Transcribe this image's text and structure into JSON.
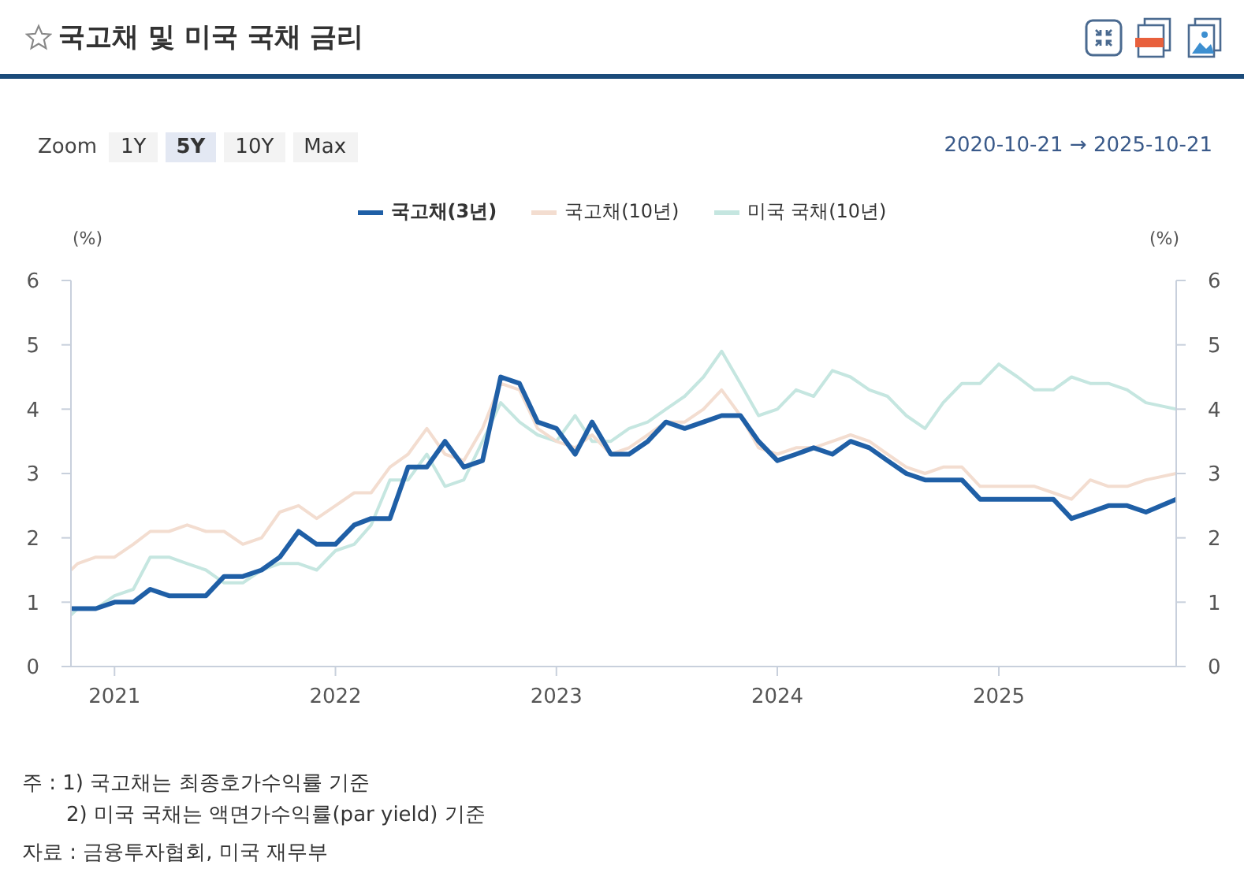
{
  "chart_data": {
    "type": "line",
    "title": "국고채 및 미국 국채 금리",
    "ylabel": "(%)",
    "y2label": "(%)",
    "annotations": [
      "Zoom",
      "1Y",
      "5Y",
      "10Y",
      "Max",
      "2020-10-21 → 2025-10-21",
      "주 : 1) 국고채는 최종호가수익률 기준",
      "2) 미국 국채는 액면가수익률(par yield) 기준",
      "자료 : 금융투자협회, 미국 재무부"
    ],
    "x": [
      "2020-10-21",
      "2020-11",
      "2020-12",
      "2021-01",
      "2021-02",
      "2021-03",
      "2021-04",
      "2021-05",
      "2021-06",
      "2021-07",
      "2021-08",
      "2021-09",
      "2021-10",
      "2021-11",
      "2021-12",
      "2022-01",
      "2022-02",
      "2022-03",
      "2022-04",
      "2022-05",
      "2022-06",
      "2022-07",
      "2022-08",
      "2022-09",
      "2022-10",
      "2022-11",
      "2022-12",
      "2023-01",
      "2023-02",
      "2023-03",
      "2023-04",
      "2023-05",
      "2023-06",
      "2023-07",
      "2023-08",
      "2023-09",
      "2023-10",
      "2023-11",
      "2023-12",
      "2024-01",
      "2024-02",
      "2024-03",
      "2024-04",
      "2024-05",
      "2024-06",
      "2024-07",
      "2024-08",
      "2024-09",
      "2024-10",
      "2024-11",
      "2024-12",
      "2025-01",
      "2025-02",
      "2025-03",
      "2025-04",
      "2025-05",
      "2025-06",
      "2025-07",
      "2025-08",
      "2025-09",
      "2025-10-21"
    ],
    "series": [
      {
        "name": "국고채(3년)",
        "color": "#1f5fa6",
        "values": [
          0.9,
          0.9,
          0.9,
          1.0,
          1.0,
          1.2,
          1.1,
          1.1,
          1.1,
          1.4,
          1.4,
          1.5,
          1.7,
          2.1,
          1.9,
          1.9,
          2.2,
          2.3,
          2.3,
          3.1,
          3.1,
          3.5,
          3.1,
          3.2,
          4.5,
          4.4,
          3.8,
          3.7,
          3.3,
          3.8,
          3.3,
          3.3,
          3.5,
          3.8,
          3.7,
          3.8,
          3.9,
          3.9,
          3.5,
          3.2,
          3.3,
          3.4,
          3.3,
          3.5,
          3.4,
          3.2,
          3.0,
          2.9,
          2.9,
          2.9,
          2.6,
          2.6,
          2.6,
          2.6,
          2.6,
          2.3,
          2.4,
          2.5,
          2.5,
          2.4,
          2.6
        ]
      },
      {
        "name": "국고채(10년)",
        "color": "#f3ddd0",
        "values": [
          1.5,
          1.6,
          1.7,
          1.7,
          1.9,
          2.1,
          2.1,
          2.2,
          2.1,
          2.1,
          1.9,
          2.0,
          2.4,
          2.5,
          2.3,
          2.5,
          2.7,
          2.7,
          3.1,
          3.3,
          3.7,
          3.3,
          3.2,
          3.7,
          4.4,
          4.3,
          3.7,
          3.5,
          3.4,
          3.6,
          3.3,
          3.4,
          3.6,
          3.8,
          3.8,
          4.0,
          4.3,
          3.9,
          3.4,
          3.3,
          3.4,
          3.4,
          3.5,
          3.6,
          3.5,
          3.3,
          3.1,
          3.0,
          3.1,
          3.1,
          2.8,
          2.8,
          2.8,
          2.8,
          2.7,
          2.6,
          2.9,
          2.8,
          2.8,
          2.9,
          3.0
        ]
      },
      {
        "name": "미국 국채(10년)",
        "color": "#c5e6e0",
        "values": [
          0.8,
          0.9,
          0.9,
          1.1,
          1.2,
          1.7,
          1.7,
          1.6,
          1.5,
          1.3,
          1.3,
          1.5,
          1.6,
          1.6,
          1.5,
          1.8,
          1.9,
          2.2,
          2.9,
          2.9,
          3.3,
          2.8,
          2.9,
          3.5,
          4.1,
          3.8,
          3.6,
          3.5,
          3.9,
          3.5,
          3.5,
          3.7,
          3.8,
          4.0,
          4.2,
          4.5,
          4.9,
          4.4,
          3.9,
          4.0,
          4.3,
          4.2,
          4.6,
          4.5,
          4.3,
          4.2,
          3.9,
          3.7,
          4.1,
          4.4,
          4.4,
          4.7,
          4.5,
          4.3,
          4.3,
          4.5,
          4.4,
          4.4,
          4.3,
          4.1,
          4.0
        ]
      }
    ],
    "xlim": [
      "2020-10-21",
      "2025-10-21"
    ],
    "xticks": [
      "2021",
      "2022",
      "2023",
      "2024",
      "2025"
    ],
    "ylim": [
      0,
      6
    ],
    "yticks": [
      0,
      1,
      2,
      3,
      4,
      5,
      6
    ],
    "y2lim": [
      0,
      6
    ],
    "y2ticks": [
      0,
      1,
      2,
      3,
      4,
      5,
      6
    ],
    "grid": false,
    "legend": "top",
    "marker": "none",
    "line_style": "solid"
  }
}
